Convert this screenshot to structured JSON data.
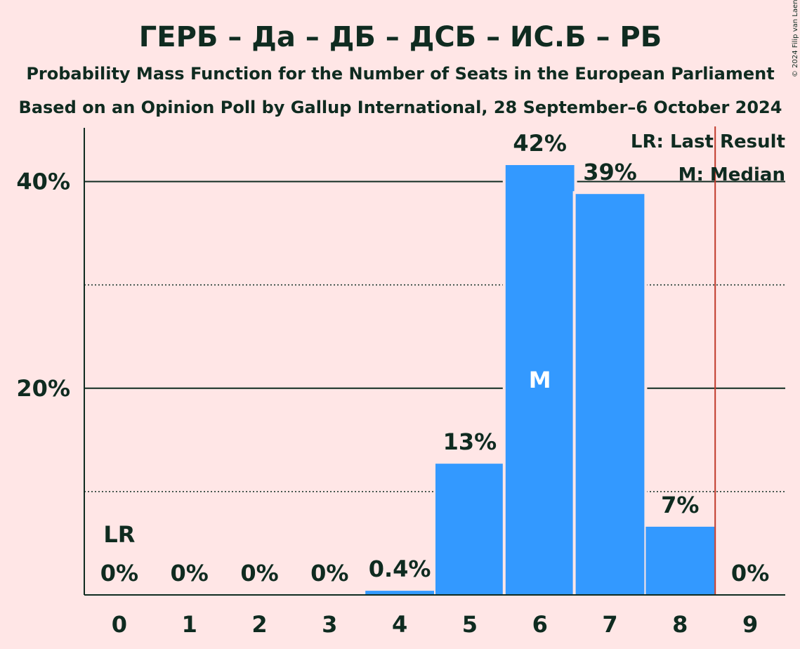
{
  "title": "ГЕРБ – Да – ДБ – ДСБ – ИС.Б – РБ",
  "subtitle1": "Probability Mass Function for the Number of Seats in the European Parliament",
  "subtitle2": "Based on an Opinion Poll by Gallup International, 28 September–6 October 2024",
  "copyright": "© 2024 Filip van Laenen",
  "legend": {
    "last_result": "LR: Last Result",
    "median": "M: Median"
  },
  "colors": {
    "background": "#FFE6E6",
    "bar": "#3399FF",
    "text": "#0F2B20",
    "last_result_line": "#C0392B"
  },
  "chart_data": {
    "type": "bar",
    "categories": [
      "0",
      "1",
      "2",
      "3",
      "4",
      "5",
      "6",
      "7",
      "8",
      "9"
    ],
    "values": [
      0,
      0,
      0,
      0,
      0.4,
      12.7,
      41.6,
      38.8,
      6.6,
      0
    ],
    "labels": [
      "0%",
      "0%",
      "0%",
      "0%",
      "0.4%",
      "13%",
      "42%",
      "39%",
      "7%",
      "0%"
    ],
    "ylim": [
      0,
      45
    ],
    "yticks_major": [
      20,
      40
    ],
    "ytick_labels": [
      "20%",
      "40%"
    ],
    "yticks_minor": [
      10,
      30
    ],
    "median_category": "6",
    "median_marker": "M",
    "last_result_category": "0",
    "last_result_marker": "LR",
    "majority_line_after_category": "8"
  }
}
